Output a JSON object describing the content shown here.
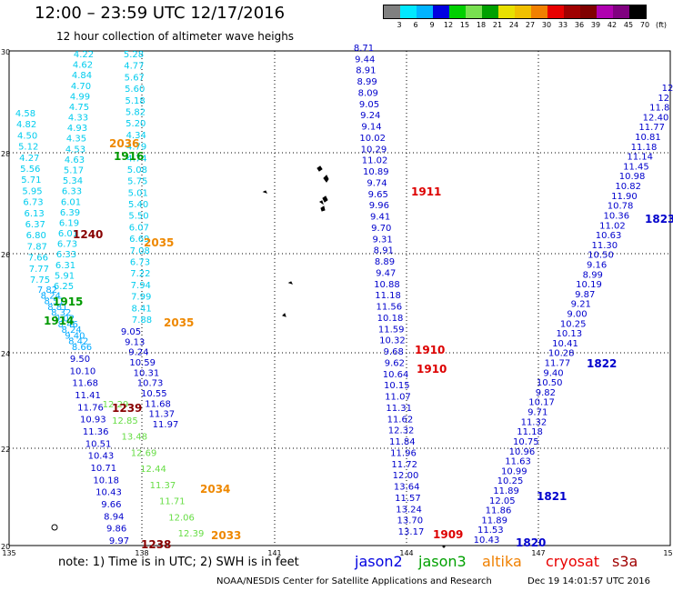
{
  "title": "12:00 – 23:59 UTC 12/17/2016",
  "subtitle": "12 hour collection of altimeter wave heighs",
  "legend": {
    "colors": [
      "#808080",
      "#00e8ff",
      "#00b4ff",
      "#0000e0",
      "#00d000",
      "#78e050",
      "#00a000",
      "#e8e000",
      "#f0c000",
      "#f08000",
      "#e80000",
      "#a00000",
      "#800000",
      "#b000b0",
      "#800080",
      "#000000"
    ],
    "labels": [
      "3",
      "6",
      "9",
      "12",
      "15",
      "18",
      "21",
      "24",
      "27",
      "30",
      "33",
      "36",
      "39",
      "42",
      "45",
      "70",
      "(ft)"
    ]
  },
  "axes": {
    "x_ticks": [
      "135",
      "138",
      "141",
      "144",
      "147",
      "150"
    ],
    "y_ticks": [
      "30",
      "28",
      "26",
      "24",
      "22",
      "20"
    ]
  },
  "footnote": "note: 1) Time is in UTC; 2) SWH is in feet",
  "satellites": [
    {
      "name": "jason2",
      "color": "#0000e0"
    },
    {
      "name": "jason3",
      "color": "#00a000"
    },
    {
      "name": "altika",
      "color": "#f08000"
    },
    {
      "name": "cryosat",
      "color": "#e80000"
    },
    {
      "name": "s3a",
      "color": "#a00000"
    }
  ],
  "credit": "NOAA/NESDIS Center for Satellite Applications and Research",
  "timestamp": "Dec 19 14:01:57 UTC 2016",
  "colors": {
    "cyan": "#00ccee",
    "lightblue": "#00aaff",
    "blue": "#0000cc",
    "green": "#009900",
    "lightgreen": "#66dd44",
    "orange": "#ee8800",
    "red": "#dd0000",
    "darkred": "#880000"
  },
  "map_data": {
    "tracks": [
      {
        "color": "cyan",
        "values": [
          "4.22",
          "4.62",
          "4.84",
          "4.70",
          "4.99",
          "4.75",
          "4.33",
          "4.93",
          "4.35",
          "4.53",
          "4.63",
          "5.17",
          "5.34",
          "6.33",
          "6.01",
          "6.39",
          "6.19",
          "6.01",
          "6.73",
          "6.33",
          "6.31",
          "5.91",
          "6.25"
        ]
      },
      {
        "color": "cyan",
        "values": [
          "4.58",
          "4.82",
          "4.50",
          "5.12",
          "4.27",
          "5.56",
          "5.71",
          "5.95",
          "6.73",
          "6.13",
          "6.37",
          "6.80",
          "7.87",
          "7.66",
          "7.77",
          "7.75"
        ]
      },
      {
        "color": "cyan",
        "values": [
          "5.28",
          "4.77",
          "5.67",
          "5.60",
          "5.18",
          "5.82",
          "5.20",
          "4.34",
          "4.79",
          "4.74",
          "5.08",
          "5.75",
          "5.01",
          "5.40",
          "5.50",
          "6.07",
          "6.69",
          "7.08",
          "6.73",
          "7.22",
          "7.94",
          "7.99",
          "8.41",
          "7.88"
        ]
      },
      {
        "color": "lightblue",
        "values": [
          "7.82",
          "8.24",
          "8.51",
          "8.81",
          "8.32",
          "9.02",
          "8.46",
          "8.24",
          "9.40",
          "8.42",
          "8.66"
        ]
      },
      {
        "color": "blue",
        "values": [
          "9.50",
          "10.10",
          "11.68",
          "11.41",
          "11.76",
          "10.93",
          "11.36",
          "10.51",
          "10.43",
          "10.71",
          "10.18",
          "10.43",
          "9.66",
          "8.94",
          "9.86",
          "9.97"
        ]
      },
      {
        "color": "blue",
        "values": [
          "9.05",
          "9.13",
          "9.24",
          "10.59",
          "10.31",
          "10.73",
          "10.55",
          "11.68",
          "11.37",
          "11.97"
        ]
      },
      {
        "color": "lightgreen",
        "values": [
          "12.29",
          "12.85",
          "13.48",
          "12.69",
          "12.44",
          "11.37",
          "11.71",
          "12.06",
          "12.39"
        ]
      },
      {
        "color": "blue",
        "values": [
          "8.71",
          "9.44",
          "8.91",
          "8.99",
          "8.09",
          "9.05",
          "9.24",
          "9.14",
          "10.02",
          "10.29",
          "11.02",
          "10.89",
          "9.74",
          "9.65",
          "9.96",
          "9.41",
          "9.70",
          "9.31",
          "8.91",
          "8.89",
          "9.47",
          "10.88",
          "11.18",
          "11.56",
          "10.18",
          "11.59",
          "10.32",
          "9.68",
          "9.62",
          "10.64",
          "10.15",
          "11.07",
          "11.31",
          "11.62",
          "12.32",
          "11.84",
          "11.96",
          "11.72",
          "12.00",
          "13.64",
          "11.57",
          "13.24",
          "13.70",
          "13.17"
        ]
      },
      {
        "color": "blue",
        "values": [
          "12",
          "12",
          "11.8",
          "12.40",
          "11.77",
          "10.81",
          "11.18",
          "11.14",
          "11.45",
          "10.98",
          "10.82",
          "11.90",
          "10.78",
          "10.36",
          "11.02",
          "10.63",
          "11.30",
          "10.50",
          "9.16",
          "8.99",
          "10.19",
          "9.87",
          "9.21",
          "9.00",
          "10.25",
          "10.13",
          "10.41",
          "10.28",
          "11.77",
          "9.40",
          "10.50",
          "9.82",
          "10.17",
          "9.71",
          "11.32",
          "11.18",
          "10.75",
          "10.96",
          "11.63",
          "10.99",
          "10.25",
          "11.89",
          "12.05",
          "11.86",
          "11.89",
          "11.53",
          "10.43"
        ]
      }
    ],
    "passes": [
      {
        "label": "2036",
        "color": "orange"
      },
      {
        "label": "1916",
        "color": "green"
      },
      {
        "label": "1240",
        "color": "darkred"
      },
      {
        "label": "2035",
        "color": "orange"
      },
      {
        "label": "1915",
        "color": "green"
      },
      {
        "label": "1914",
        "color": "green"
      },
      {
        "label": "2035",
        "color": "orange"
      },
      {
        "label": "1239",
        "color": "darkred"
      },
      {
        "label": "2034",
        "color": "orange"
      },
      {
        "label": "2033",
        "color": "orange"
      },
      {
        "label": "1238",
        "color": "darkred"
      },
      {
        "label": "1911",
        "color": "red"
      },
      {
        "label": "1910",
        "color": "red"
      },
      {
        "label": "1910",
        "color": "red"
      },
      {
        "label": "1909",
        "color": "red"
      },
      {
        "label": "1823",
        "color": "blue"
      },
      {
        "label": "1822",
        "color": "blue"
      },
      {
        "label": "1821",
        "color": "blue"
      },
      {
        "label": "1820",
        "color": "blue"
      }
    ]
  }
}
